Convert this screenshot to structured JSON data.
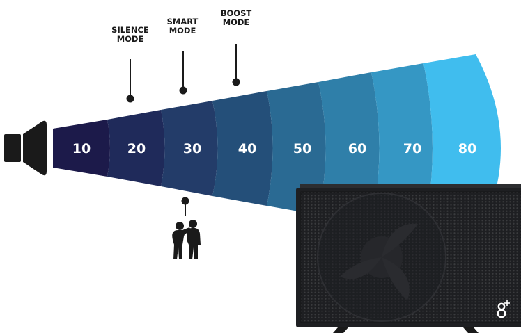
{
  "modes": [
    {
      "line1": "SILENCE",
      "line2": "MODE"
    },
    {
      "line1": "SMART",
      "line2": "MODE"
    },
    {
      "line1": "BOOST",
      "line2": "MODE"
    }
  ],
  "bands": [
    {
      "label": "10",
      "color": "#1c1a4a"
    },
    {
      "label": "20",
      "color": "#1f2a5a"
    },
    {
      "label": "30",
      "color": "#233c69"
    },
    {
      "label": "40",
      "color": "#244f79"
    },
    {
      "label": "50",
      "color": "#2a6a93"
    },
    {
      "label": "60",
      "color": "#2f7fa9"
    },
    {
      "label": "70",
      "color": "#3597c4"
    },
    {
      "label": "80",
      "color": "#40bdee"
    }
  ],
  "icons": {
    "speaker": "speaker-icon",
    "people": "two-people-talking-icon",
    "unit": "heat-pump-unit-icon"
  }
}
